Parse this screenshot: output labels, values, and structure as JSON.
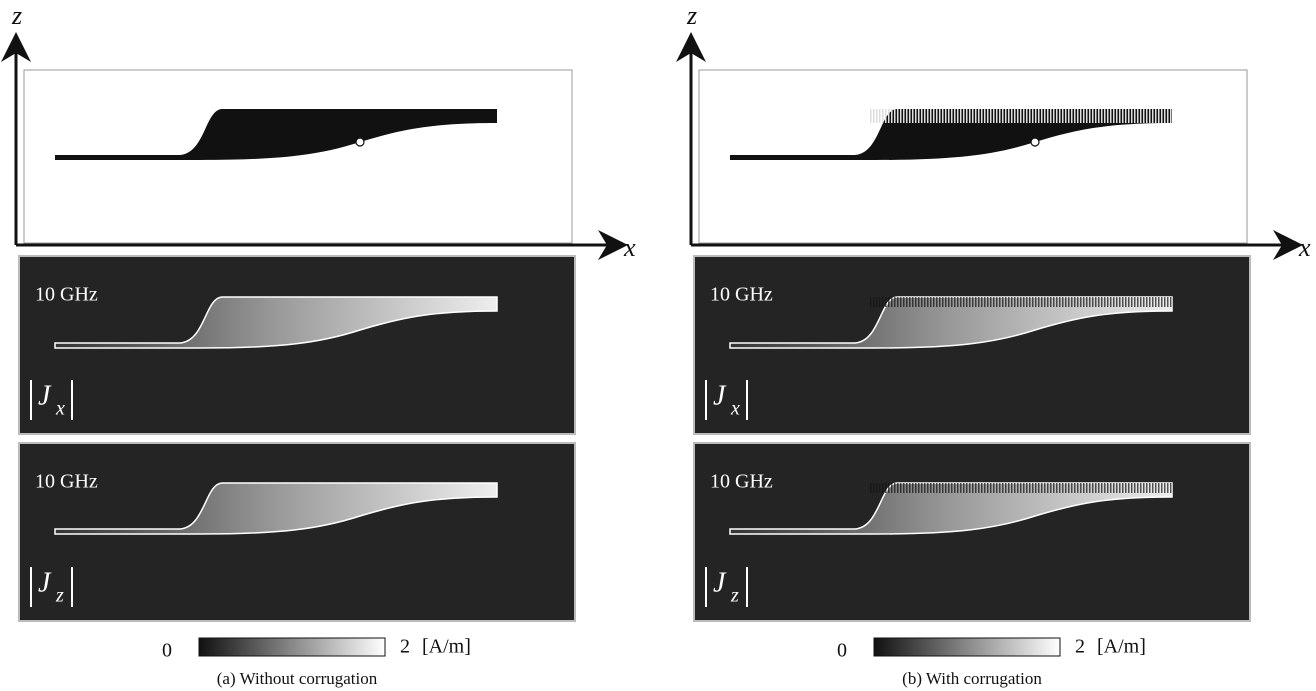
{
  "panels": [
    {
      "axis_vertical": "z",
      "axis_horizontal": "x",
      "plots": [
        {
          "frequency": "10 GHz",
          "quantity": "J",
          "component": "x"
        },
        {
          "frequency": "10 GHz",
          "quantity": "J",
          "component": "z"
        }
      ],
      "colorbar": {
        "min": 0,
        "max": 2,
        "unit": "[A/m]"
      },
      "caption": "(a) Without corrugation"
    },
    {
      "axis_vertical": "z",
      "axis_horizontal": "x",
      "plots": [
        {
          "frequency": "10 GHz",
          "quantity": "J",
          "component": "x"
        },
        {
          "frequency": "10 GHz",
          "quantity": "J",
          "component": "z"
        }
      ],
      "colorbar": {
        "min": 0,
        "max": 2,
        "unit": "[A/m]"
      },
      "caption": "(b) With corrugation"
    }
  ]
}
